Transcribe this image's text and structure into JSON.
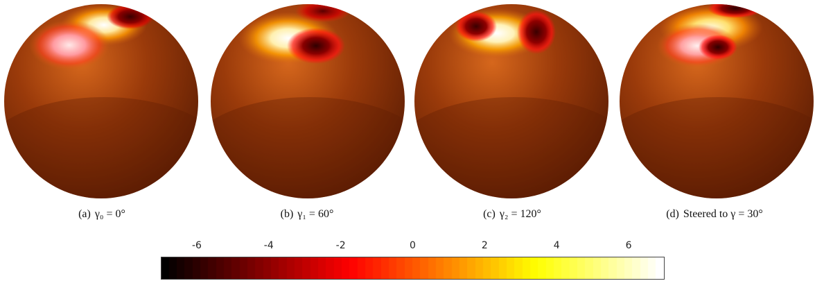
{
  "panels": [
    {
      "label": "(a)",
      "caption": "γ₀ = 0°"
    },
    {
      "label": "(b)",
      "caption": "γ₁ = 60°"
    },
    {
      "label": "(c)",
      "caption": "γ₂ = 120°"
    },
    {
      "label": "(d)",
      "caption": "Steered to γ = 30°"
    }
  ],
  "colorbar": {
    "ticks": [
      "-6",
      "-4",
      "-2",
      "0",
      "2",
      "4",
      "6"
    ],
    "min": -7,
    "max": 7,
    "colormap": "hot"
  },
  "colors": {
    "sphere_base": "#8a3208",
    "sphere_dark": "#5e1d04",
    "sphere_light": "#c75a14",
    "hot_spot": "#ffffff",
    "cold_spot": "#3a0000"
  }
}
